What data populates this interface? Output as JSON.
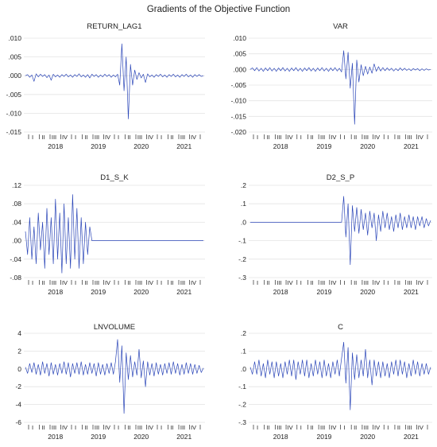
{
  "figure_title": "Gradients of the Objective Function",
  "colors": {
    "series": "#2b46b8",
    "grid": "#e4e4e4",
    "axis": "#555555"
  },
  "time_axis": {
    "quarter_labels": [
      "I",
      "II",
      "III",
      "IV",
      "I",
      "II",
      "III",
      "IV",
      "I",
      "II",
      "III",
      "IV",
      "I",
      "II",
      "III",
      "IV",
      "I"
    ],
    "year_labels": [
      "2018",
      "2019",
      "2020",
      "2021"
    ],
    "start": "2017-10",
    "end": "2022-01"
  },
  "chart_data": [
    {
      "type": "line",
      "title": "RETURN_LAG1",
      "ylim": [
        -0.015,
        0.01
      ],
      "yticks": [
        -0.015,
        -0.01,
        -0.005,
        0.0,
        0.005,
        0.01
      ],
      "ytick_labels": [
        "-.015",
        "-.010",
        "-.005",
        ".000",
        ".005",
        ".010"
      ],
      "grid": true,
      "series": [
        {
          "values": [
            0,
            0.0003,
            -0.0004,
            0.0002,
            -0.0015,
            0.0005,
            -0.0003,
            0.0004,
            -0.0002,
            0.0003,
            -0.0005,
            0.0002,
            -0.0012,
            0.0004,
            -0.0003,
            0.0002,
            -0.0004,
            0.0003,
            -0.0002,
            0.0004,
            -0.0003,
            0.0002,
            -0.0004,
            0.0003,
            -0.0002,
            0.0005,
            -0.0003,
            0.0002,
            -0.0004,
            0.0003,
            -0.0006,
            0.0004,
            -0.0002,
            0.0003,
            -0.0004,
            0.0002,
            -0.0003,
            0.0004,
            -0.0002,
            0.0003,
            -0.0004,
            0.0002,
            -0.0003,
            0.0004,
            -0.0025,
            0.0085,
            -0.004,
            0.005,
            -0.0115,
            0.003,
            -0.0025,
            0.0015,
            -0.001,
            0.0008,
            -0.0006,
            0.0004,
            -0.0018,
            0.0005,
            -0.0003,
            0.0002,
            -0.0004,
            0.0003,
            -0.0002,
            0.0004,
            -0.0003,
            0.0002,
            -0.0004,
            0.0003,
            -0.0002,
            0.0004,
            -0.0003,
            0.0002,
            -0.0004,
            0.0003,
            -0.0002,
            0.0004,
            -0.0003,
            0.0002,
            -0.0004,
            0.0003,
            -0.0002,
            0.0003,
            -0.0002,
            0
          ]
        }
      ]
    },
    {
      "type": "line",
      "title": "VAR",
      "ylim": [
        -0.02,
        0.01
      ],
      "yticks": [
        -0.02,
        -0.015,
        -0.01,
        -0.005,
        0.0,
        0.005,
        0.01
      ],
      "ytick_labels": [
        "-.020",
        "-.015",
        "-.010",
        "-.005",
        ".000",
        ".005",
        ".010"
      ],
      "grid": true,
      "series": [
        {
          "values": [
            0,
            0.0005,
            -0.0004,
            0.0006,
            -0.0005,
            0.0004,
            -0.0006,
            0.0005,
            -0.0004,
            0.0006,
            -0.0005,
            0.0004,
            -0.0006,
            0.0005,
            -0.0004,
            0.0006,
            -0.0005,
            0.0004,
            -0.0006,
            0.0005,
            -0.0004,
            0.0006,
            -0.0005,
            0.0004,
            -0.0006,
            0.0005,
            -0.0004,
            0.0006,
            -0.0005,
            0.0004,
            -0.0006,
            0.0005,
            -0.0004,
            0.0006,
            -0.0005,
            0.0004,
            -0.0006,
            0.0005,
            -0.0004,
            0.0006,
            -0.0005,
            0.0004,
            -0.0008,
            0.006,
            -0.003,
            0.0055,
            -0.006,
            0.002,
            -0.0175,
            0.003,
            -0.004,
            0.0015,
            -0.002,
            0.001,
            -0.0015,
            0.0008,
            -0.0012,
            0.0018,
            -0.0006,
            0.0009,
            -0.0005,
            0.0006,
            -0.0004,
            0.0005,
            -0.0003,
            0.0004,
            -0.0005,
            0.0003,
            -0.0004,
            0.0005,
            -0.0003,
            0.0004,
            -0.0003,
            0.0002,
            -0.0004,
            0.0003,
            -0.0002,
            0.0003,
            -0.0004,
            0.0002,
            -0.0003,
            0.0002,
            -0.0002,
            0
          ]
        }
      ]
    },
    {
      "type": "line",
      "title": "D1_S_K",
      "ylim": [
        -0.08,
        0.12
      ],
      "yticks": [
        -0.08,
        -0.04,
        0.0,
        0.04,
        0.08,
        0.12
      ],
      "ytick_labels": [
        "-.08",
        "-.04",
        ".00",
        ".04",
        ".08",
        ".12"
      ],
      "grid": true,
      "series": [
        {
          "values": [
            0.02,
            -0.03,
            0.05,
            -0.04,
            0.03,
            -0.05,
            0.06,
            -0.02,
            0.04,
            -0.06,
            0.07,
            -0.03,
            0.05,
            -0.05,
            0.09,
            -0.04,
            0.06,
            -0.07,
            0.08,
            -0.05,
            0.05,
            -0.06,
            0.1,
            -0.04,
            0.07,
            -0.06,
            0.05,
            -0.05,
            0.04,
            -0.03,
            0.03,
            0,
            0,
            0,
            0,
            0,
            0,
            0,
            0,
            0,
            0,
            0,
            0,
            0,
            0,
            0,
            0,
            0,
            0,
            0,
            0,
            0,
            0,
            0,
            0,
            0,
            0,
            0,
            0,
            0,
            0,
            0,
            0,
            0,
            0,
            0,
            0,
            0,
            0,
            0,
            0,
            0,
            0,
            0,
            0,
            0,
            0,
            0,
            0,
            0,
            0,
            0,
            0,
            0
          ]
        }
      ]
    },
    {
      "type": "line",
      "title": "D2_S_P",
      "ylim": [
        -0.3,
        0.2
      ],
      "yticks": [
        -0.3,
        -0.2,
        -0.1,
        0.0,
        0.1,
        0.2
      ],
      "ytick_labels": [
        "-.3",
        "-.2",
        "-.1",
        ".0",
        ".1",
        ".2"
      ],
      "grid": true,
      "series": [
        {
          "values": [
            0,
            0,
            0,
            0,
            0,
            0,
            0,
            0,
            0,
            0,
            0,
            0,
            0,
            0,
            0,
            0,
            0,
            0,
            0,
            0,
            0,
            0,
            0,
            0,
            0,
            0,
            0,
            0,
            0,
            0,
            0,
            0,
            0,
            0,
            0,
            0,
            0,
            0,
            0,
            0,
            0,
            0,
            0,
            0.14,
            -0.08,
            0.1,
            -0.23,
            0.09,
            -0.05,
            0.08,
            -0.06,
            0.07,
            -0.04,
            0.05,
            -0.07,
            0.06,
            -0.03,
            0.05,
            -0.1,
            0.04,
            -0.05,
            0.06,
            -0.03,
            0.05,
            -0.04,
            0.03,
            -0.05,
            0.04,
            -0.03,
            0.05,
            -0.04,
            0.03,
            -0.03,
            0.04,
            -0.03,
            0.03,
            -0.04,
            0.03,
            -0.02,
            0.03,
            -0.03,
            0.02,
            -0.02,
            0.01
          ]
        }
      ]
    },
    {
      "type": "line",
      "title": "LNVOLUME",
      "ylim": [
        -6,
        4
      ],
      "yticks": [
        -6,
        -4,
        -2,
        0,
        2,
        4
      ],
      "ytick_labels": [
        "-6",
        "-4",
        "-2",
        "0",
        "2",
        "4"
      ],
      "grid": true,
      "series": [
        {
          "values": [
            0.2,
            -0.5,
            0.6,
            -0.4,
            0.7,
            -0.6,
            0.5,
            -0.7,
            0.8,
            -0.5,
            0.6,
            -0.8,
            0.7,
            -0.6,
            0.5,
            -0.7,
            0.6,
            -0.5,
            0.8,
            -0.6,
            0.7,
            -0.9,
            0.6,
            -0.5,
            0.7,
            -0.6,
            0.8,
            -0.7,
            0.5,
            -0.6,
            0.7,
            -0.5,
            0.6,
            -0.8,
            0.7,
            -0.6,
            0.5,
            -0.7,
            0.6,
            -0.5,
            0.7,
            -0.6,
            0.8,
            3.3,
            -1.5,
            2.6,
            -5.0,
            1.8,
            -1.2,
            1.5,
            -0.9,
            0.8,
            -0.7,
            2.2,
            -1.0,
            0.9,
            -2.0,
            0.8,
            -0.7,
            0.6,
            -0.8,
            0.7,
            -0.6,
            0.5,
            -0.7,
            0.6,
            -0.5,
            0.7,
            -0.6,
            0.8,
            -0.5,
            0.6,
            -0.7,
            0.5,
            -0.6,
            0.7,
            -0.5,
            0.6,
            -0.6,
            0.5,
            -0.5,
            0.4,
            -0.4,
            0.1
          ]
        }
      ]
    },
    {
      "type": "line",
      "title": "C",
      "ylim": [
        -0.3,
        0.2
      ],
      "yticks": [
        -0.3,
        -0.2,
        -0.1,
        0.0,
        0.1,
        0.2
      ],
      "ytick_labels": [
        "-.3",
        "-.2",
        "-.1",
        ".0",
        ".1",
        ".2"
      ],
      "grid": true,
      "series": [
        {
          "values": [
            0.01,
            -0.03,
            0.04,
            -0.03,
            0.05,
            -0.04,
            0.03,
            -0.05,
            0.05,
            -0.03,
            0.04,
            -0.05,
            0.04,
            -0.04,
            0.03,
            -0.05,
            0.04,
            -0.03,
            0.05,
            -0.04,
            0.05,
            -0.06,
            0.04,
            -0.03,
            0.05,
            -0.04,
            0.05,
            -0.05,
            0.03,
            -0.04,
            0.05,
            -0.03,
            0.04,
            -0.05,
            0.05,
            -0.04,
            0.03,
            -0.05,
            0.04,
            -0.03,
            0.05,
            -0.04,
            0.06,
            0.15,
            -0.08,
            0.12,
            -0.23,
            0.09,
            -0.06,
            0.08,
            -0.05,
            0.05,
            -0.04,
            0.11,
            -0.05,
            0.05,
            -0.09,
            0.05,
            -0.04,
            0.04,
            -0.05,
            0.04,
            -0.04,
            0.03,
            -0.05,
            0.04,
            -0.03,
            0.05,
            -0.04,
            0.05,
            -0.03,
            0.04,
            -0.05,
            0.03,
            -0.04,
            0.05,
            -0.03,
            0.04,
            -0.04,
            0.03,
            -0.03,
            0.03,
            -0.03,
            0.01
          ]
        }
      ]
    }
  ]
}
